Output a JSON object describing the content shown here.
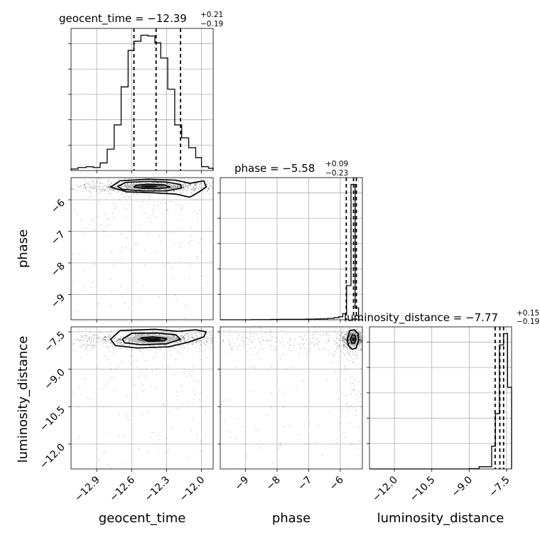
{
  "chart_data": {
    "type": "corner",
    "parameters": [
      "geocent_time",
      "phase",
      "luminosity_distance"
    ],
    "grid": true,
    "diagonal": [
      {
        "parameter": "geocent_time",
        "title_main": "geocent_time = −12.39",
        "title_sup": "+0.21",
        "title_sub": "−0.19",
        "range": [
          -13.12,
          -11.9
        ],
        "quantiles": [
          -12.58,
          -12.39,
          -12.18
        ],
        "bin_edges": [
          -13.12,
          -13.06,
          -12.99,
          -12.93,
          -12.87,
          -12.81,
          -12.75,
          -12.69,
          -12.63,
          -12.58,
          -12.52,
          -12.46,
          -12.4,
          -12.35,
          -12.29,
          -12.23,
          -12.17,
          -12.11,
          -12.05,
          -12.0,
          -11.94,
          -11.9
        ],
        "counts": [
          2,
          4,
          5,
          4,
          10,
          28,
          60,
          110,
          158,
          170,
          178,
          177,
          168,
          148,
          107,
          60,
          43,
          30,
          17,
          5,
          3
        ]
      },
      {
        "parameter": "phase",
        "title_main": "phase = −5.58",
        "title_sup": "+0.09",
        "title_sub": "−0.23",
        "range": [
          -9.8,
          -5.3
        ],
        "quantiles": [
          -5.81,
          -5.58,
          -5.49
        ],
        "bin_edges": [
          -9.8,
          -9.3,
          -8.8,
          -8.5,
          -8.2,
          -7.9,
          -7.5,
          -7.1,
          -6.8,
          -6.6,
          -6.4,
          -6.2,
          -6.05,
          -5.92,
          -5.8,
          -5.66,
          -5.53,
          -5.42,
          -5.3
        ],
        "counts": [
          0,
          0,
          1,
          1,
          2,
          3,
          3,
          4,
          5,
          6,
          9,
          14,
          20,
          40,
          230,
          910,
          80,
          0
        ]
      },
      {
        "parameter": "luminosity_distance",
        "title_main": "luminosity_distance = −7.77",
        "title_sup": "+0.15",
        "title_sub": "−0.19",
        "range": [
          -13.0,
          -7.3
        ],
        "quantiles": [
          -7.96,
          -7.77,
          -7.62
        ],
        "bin_edges": [
          -13.0,
          -12.5,
          -12.0,
          -11.5,
          -11.0,
          -10.5,
          -10.0,
          -9.5,
          -9.0,
          -8.6,
          -8.1,
          -7.95,
          -7.79,
          -7.62,
          -7.46,
          -7.3
        ],
        "counts": [
          0,
          0,
          0,
          0,
          0,
          0,
          0,
          0,
          3,
          30,
          300,
          730,
          1640,
          1790,
          1080
        ]
      }
    ],
    "scatter_panels": [
      {
        "x": "geocent_time",
        "y": "phase",
        "x_range": [
          -13.12,
          -11.9
        ],
        "y_range": [
          -9.8,
          -5.3
        ],
        "core_center": [
          -12.45,
          -5.58
        ],
        "core_spread": [
          0.12,
          0.07
        ],
        "contours": [
          [
            [
              -12.72,
              -5.58
            ],
            [
              -12.65,
              -5.45
            ],
            [
              -12.46,
              -5.42
            ],
            [
              -12.3,
              -5.44
            ],
            [
              -12.18,
              -5.52
            ],
            [
              -12.17,
              -5.63
            ],
            [
              -12.3,
              -5.72
            ],
            [
              -12.5,
              -5.72
            ],
            [
              -12.68,
              -5.67
            ]
          ],
          [
            [
              -12.56,
              -5.54
            ],
            [
              -12.46,
              -5.51
            ],
            [
              -12.32,
              -5.53
            ],
            [
              -12.27,
              -5.6
            ],
            [
              -12.36,
              -5.65
            ],
            [
              -12.5,
              -5.64
            ],
            [
              -12.58,
              -5.6
            ]
          ],
          [
            [
              -12.78,
              -5.6
            ],
            [
              -12.7,
              -5.4
            ],
            [
              -12.46,
              -5.35
            ],
            [
              -12.22,
              -5.38
            ],
            [
              -12.1,
              -5.48
            ],
            [
              -11.98,
              -5.4
            ],
            [
              -11.96,
              -5.6
            ],
            [
              -12.02,
              -5.75
            ],
            [
              -12.1,
              -5.92
            ],
            [
              -12.22,
              -5.82
            ],
            [
              -12.42,
              -5.78
            ],
            [
              -12.64,
              -5.75
            ]
          ]
        ]
      },
      {
        "x": "geocent_time",
        "y": "luminosity_distance",
        "x_range": [
          -13.12,
          -11.9
        ],
        "y_range": [
          -13.0,
          -7.3
        ],
        "core_center": [
          -12.42,
          -7.8
        ],
        "core_spread": [
          0.12,
          0.12
        ],
        "contours": [
          [
            [
              -12.68,
              -7.8
            ],
            [
              -12.6,
              -7.56
            ],
            [
              -12.38,
              -7.55
            ],
            [
              -12.22,
              -7.62
            ],
            [
              -12.18,
              -7.8
            ],
            [
              -12.3,
              -7.98
            ],
            [
              -12.52,
              -8.02
            ],
            [
              -12.66,
              -7.94
            ]
          ],
          [
            [
              -12.52,
              -7.74
            ],
            [
              -12.42,
              -7.7
            ],
            [
              -12.3,
              -7.76
            ],
            [
              -12.32,
              -7.86
            ],
            [
              -12.46,
              -7.88
            ]
          ],
          [
            [
              -12.78,
              -7.8
            ],
            [
              -12.7,
              -7.45
            ],
            [
              -12.4,
              -7.4
            ],
            [
              -12.2,
              -7.48
            ],
            [
              -12.05,
              -7.42
            ],
            [
              -11.96,
              -7.5
            ],
            [
              -11.98,
              -7.7
            ],
            [
              -12.1,
              -7.9
            ],
            [
              -12.28,
              -8.1
            ],
            [
              -12.55,
              -8.15
            ],
            [
              -12.74,
              -8.05
            ]
          ]
        ]
      },
      {
        "x": "phase",
        "y": "luminosity_distance",
        "x_range": [
          -9.8,
          -5.3
        ],
        "y_range": [
          -13.0,
          -7.3
        ],
        "core_center": [
          -5.58,
          -7.8
        ],
        "core_spread": [
          0.08,
          0.15
        ],
        "contours": [
          [
            [
              -5.68,
              -7.8
            ],
            [
              -5.62,
              -7.62
            ],
            [
              -5.53,
              -7.64
            ],
            [
              -5.5,
              -7.8
            ],
            [
              -5.55,
              -7.96
            ],
            [
              -5.64,
              -7.95
            ]
          ],
          [
            [
              -5.78,
              -7.8
            ],
            [
              -5.7,
              -7.45
            ],
            [
              -5.55,
              -7.42
            ],
            [
              -5.43,
              -7.58
            ],
            [
              -5.42,
              -7.85
            ],
            [
              -5.5,
              -8.15
            ],
            [
              -5.62,
              -8.2
            ],
            [
              -5.74,
              -8.05
            ]
          ]
        ]
      }
    ],
    "axes": {
      "x_ticks": {
        "geocent_time": [
          "−12.9",
          "−12.6",
          "−12.3",
          "−12.0"
        ],
        "phase": [
          "−9",
          "−8",
          "−7",
          "−6"
        ],
        "luminosity_distance": [
          "−12.0",
          "−10.5",
          "−9.0",
          "−7.5"
        ]
      },
      "y_ticks": {
        "phase": [
          "−6",
          "−7",
          "−8",
          "−9"
        ],
        "luminosity_distance": [
          "−7.5",
          "−9.0",
          "−10.5",
          "−12.0"
        ]
      },
      "x_tick_values": {
        "geocent_time": [
          -12.9,
          -12.6,
          -12.3,
          -12.0
        ],
        "phase": [
          -9,
          -8,
          -7,
          -6
        ],
        "luminosity_distance": [
          -12.0,
          -10.5,
          -9.0,
          -7.5
        ]
      },
      "y_tick_values": {
        "phase": [
          -6,
          -7,
          -8,
          -9
        ],
        "luminosity_distance": [
          -7.5,
          -9.0,
          -10.5,
          -12.0
        ]
      },
      "labels": {
        "x_geocent_time": "geocent_time",
        "x_phase": "phase",
        "x_luminosity_distance": "luminosity_distance",
        "y_phase": "phase",
        "y_luminosity_distance": "luminosity_distance"
      }
    },
    "colors": {
      "line": "#000000",
      "grid": "#b0b0b0",
      "points": "#000000",
      "density_dark": "#111111",
      "density_mid": "#666666",
      "density_light": "#bdbdbd"
    }
  }
}
